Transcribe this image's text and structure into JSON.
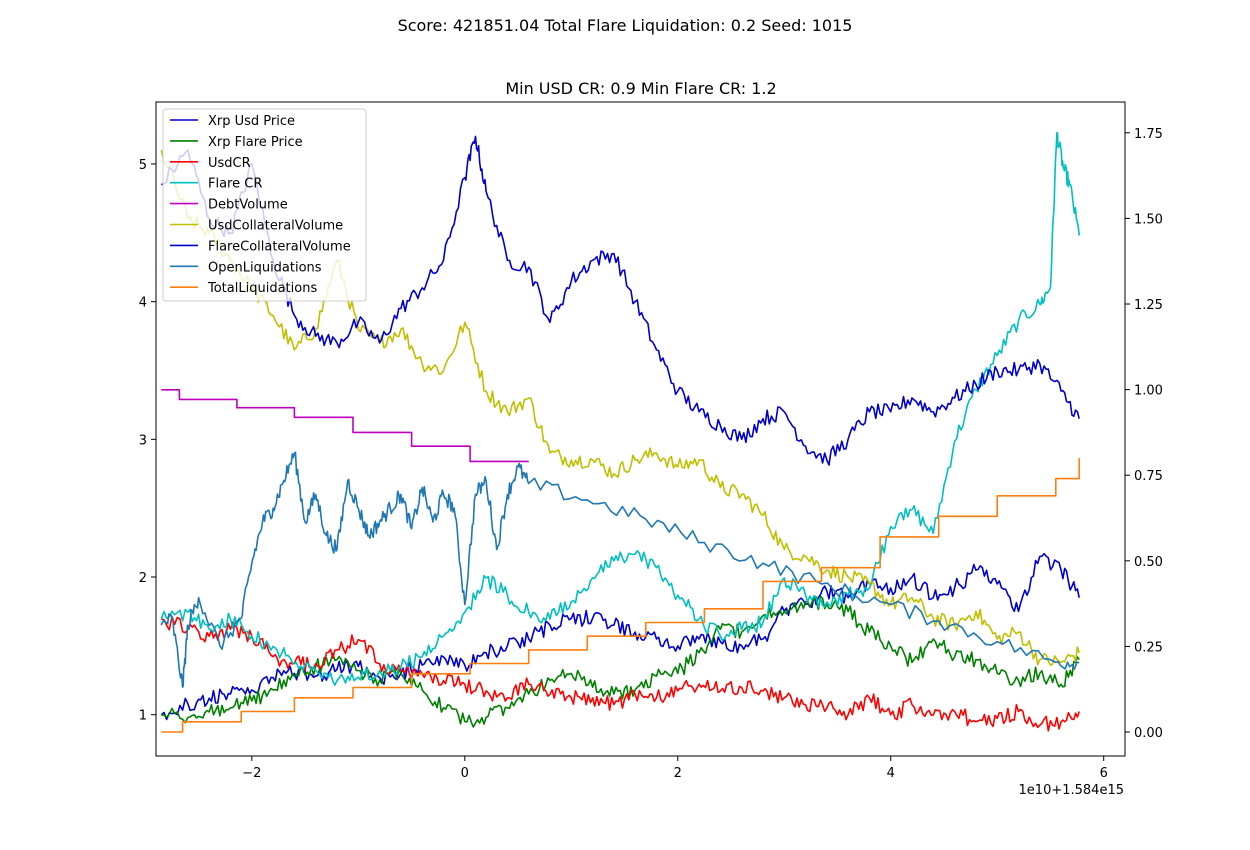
{
  "figure": {
    "suptitle": "Score: 421851.04 Total Flare Liquidation: 0.2 Seed: 1015",
    "title": "Min USD CR: 0.9 Min Flare CR: 1.2",
    "x_offset_label": "1e10+1.584e15"
  },
  "chart_data": {
    "type": "line",
    "title": "Min USD CR: 0.9 Min Flare CR: 1.2",
    "xlim": [
      -2.9,
      6.2
    ],
    "ylim_left": [
      0.7,
      5.45
    ],
    "ylim_right": [
      -0.07,
      1.84
    ],
    "x_ticks": [
      -2,
      0,
      2,
      4,
      6
    ],
    "x_tick_labels": [
      "−2",
      "0",
      "2",
      "4",
      "6"
    ],
    "y_ticks_left": [
      1,
      2,
      3,
      4,
      5
    ],
    "y_tick_labels_left": [
      "1",
      "2",
      "3",
      "4",
      "5"
    ],
    "y_ticks_right": [
      0.0,
      0.25,
      0.5,
      0.75,
      1.0,
      1.25,
      1.5,
      1.75
    ],
    "y_tick_labels_right": [
      "0.00",
      "0.25",
      "0.50",
      "0.75",
      "1.00",
      "1.25",
      "1.50",
      "1.75"
    ],
    "legend_position": "upper-left",
    "series": [
      {
        "name": "Xrp Usd Price",
        "color": "#0000cc",
        "axis": "left",
        "x": [
          -2.85,
          -2.6,
          -2.4,
          -2.2,
          -2.0,
          -1.8,
          -1.6,
          -1.4,
          -1.2,
          -1.0,
          -0.8,
          -0.6,
          -0.4,
          -0.2,
          0.0,
          0.2,
          0.4,
          0.6,
          0.8,
          1.0,
          1.2,
          1.4,
          1.6,
          1.8,
          2.0,
          2.2,
          2.4,
          2.6,
          2.8,
          3.0,
          3.2,
          3.4,
          3.6,
          3.8,
          4.0,
          4.2,
          4.4,
          4.6,
          4.8,
          5.0,
          5.2,
          5.4,
          5.6,
          5.77
        ],
        "y": [
          1.0,
          1.08,
          1.12,
          1.15,
          1.18,
          1.27,
          1.3,
          1.28,
          1.33,
          1.35,
          1.27,
          1.3,
          1.36,
          1.42,
          1.36,
          1.45,
          1.5,
          1.55,
          1.65,
          1.7,
          1.7,
          1.65,
          1.6,
          1.55,
          1.5,
          1.55,
          1.53,
          1.5,
          1.55,
          1.75,
          1.8,
          1.9,
          1.85,
          1.95,
          1.92,
          2.0,
          1.85,
          1.92,
          2.05,
          1.95,
          1.75,
          2.15,
          2.05,
          1.85
        ]
      },
      {
        "name": "Xrp Flare Price",
        "color": "#008000",
        "axis": "left",
        "x": [
          -2.85,
          -2.6,
          -2.4,
          -2.2,
          -2.0,
          -1.8,
          -1.6,
          -1.4,
          -1.2,
          -1.0,
          -0.8,
          -0.6,
          -0.4,
          -0.2,
          0.0,
          0.2,
          0.4,
          0.6,
          0.8,
          1.0,
          1.2,
          1.4,
          1.6,
          1.8,
          2.0,
          2.2,
          2.4,
          2.6,
          2.8,
          3.0,
          3.2,
          3.4,
          3.6,
          3.8,
          4.0,
          4.2,
          4.4,
          4.6,
          4.8,
          5.0,
          5.2,
          5.4,
          5.6,
          5.77
        ],
        "y": [
          1.0,
          0.98,
          1.02,
          1.05,
          1.1,
          1.18,
          1.28,
          1.35,
          1.4,
          1.32,
          1.25,
          1.3,
          1.18,
          1.05,
          0.95,
          0.98,
          1.05,
          1.15,
          1.25,
          1.3,
          1.2,
          1.15,
          1.18,
          1.28,
          1.3,
          1.45,
          1.62,
          1.6,
          1.72,
          1.75,
          1.82,
          1.8,
          1.75,
          1.6,
          1.5,
          1.38,
          1.55,
          1.42,
          1.4,
          1.3,
          1.25,
          1.3,
          1.22,
          1.4
        ]
      },
      {
        "name": "UsdCR",
        "color": "#ff0000",
        "axis": "right",
        "x": [
          -2.85,
          -2.6,
          -2.4,
          -2.2,
          -2.0,
          -1.8,
          -1.6,
          -1.4,
          -1.2,
          -1.0,
          -0.8,
          -0.6,
          -0.4,
          -0.2,
          0.0,
          0.2,
          0.4,
          0.6,
          0.8,
          1.0,
          1.2,
          1.4,
          1.6,
          1.8,
          2.0,
          2.2,
          2.4,
          2.6,
          2.8,
          3.0,
          3.2,
          3.4,
          3.6,
          3.8,
          4.0,
          4.2,
          4.4,
          4.6,
          4.8,
          5.0,
          5.2,
          5.4,
          5.6,
          5.77
        ],
        "y": [
          0.33,
          0.3,
          0.28,
          0.3,
          0.28,
          0.22,
          0.2,
          0.2,
          0.24,
          0.27,
          0.2,
          0.18,
          0.17,
          0.15,
          0.14,
          0.12,
          0.1,
          0.14,
          0.11,
          0.1,
          0.1,
          0.08,
          0.11,
          0.1,
          0.12,
          0.14,
          0.12,
          0.13,
          0.12,
          0.1,
          0.08,
          0.07,
          0.05,
          0.1,
          0.05,
          0.08,
          0.05,
          0.06,
          0.03,
          0.04,
          0.06,
          0.02,
          0.03,
          0.06
        ]
      },
      {
        "name": "Flare CR",
        "color": "#00bfbf",
        "axis": "right",
        "x": [
          -2.85,
          -2.6,
          -2.4,
          -2.2,
          -2.0,
          -1.8,
          -1.6,
          -1.4,
          -1.2,
          -1.0,
          -0.8,
          -0.6,
          -0.4,
          -0.2,
          0.0,
          0.2,
          0.4,
          0.6,
          0.8,
          1.0,
          1.2,
          1.4,
          1.6,
          1.8,
          2.0,
          2.2,
          2.4,
          2.6,
          2.8,
          3.0,
          3.2,
          3.4,
          3.6,
          3.8,
          4.0,
          4.2,
          4.4,
          4.6,
          4.8,
          5.0,
          5.2,
          5.4,
          5.5,
          5.56,
          5.62,
          5.68,
          5.77
        ],
        "y": [
          0.33,
          0.35,
          0.3,
          0.33,
          0.28,
          0.25,
          0.2,
          0.18,
          0.15,
          0.16,
          0.18,
          0.19,
          0.22,
          0.28,
          0.35,
          0.45,
          0.4,
          0.35,
          0.33,
          0.38,
          0.45,
          0.5,
          0.52,
          0.48,
          0.4,
          0.33,
          0.28,
          0.3,
          0.32,
          0.45,
          0.4,
          0.38,
          0.4,
          0.42,
          0.6,
          0.65,
          0.58,
          0.85,
          1.0,
          1.1,
          1.2,
          1.25,
          1.3,
          1.75,
          1.65,
          1.6,
          1.45
        ]
      },
      {
        "name": "DebtVolume",
        "color": "#bf00bf",
        "axis": "left",
        "step": true,
        "x": [
          -2.85,
          -2.68,
          -2.14,
          -1.6,
          -1.05,
          -0.5,
          0.05,
          0.6
        ],
        "y": [
          3.36,
          3.29,
          3.23,
          3.16,
          3.05,
          2.95,
          2.84,
          2.84
        ]
      },
      {
        "name": "UsdCollateralVolume",
        "color": "#bfbf00",
        "axis": "left",
        "x": [
          -2.85,
          -2.6,
          -2.4,
          -2.2,
          -2.0,
          -1.8,
          -1.6,
          -1.4,
          -1.2,
          -1.0,
          -0.8,
          -0.6,
          -0.4,
          -0.2,
          0.0,
          0.2,
          0.4,
          0.6,
          0.8,
          1.0,
          1.2,
          1.4,
          1.6,
          1.8,
          2.0,
          2.2,
          2.4,
          2.6,
          2.8,
          3.0,
          3.2,
          3.4,
          3.6,
          3.8,
          4.0,
          4.2,
          4.4,
          4.6,
          4.8,
          5.0,
          5.2,
          5.4,
          5.6,
          5.77
        ],
        "y": [
          5.1,
          4.6,
          4.5,
          4.3,
          4.1,
          3.9,
          3.65,
          3.8,
          4.3,
          3.8,
          3.7,
          3.8,
          3.55,
          3.5,
          3.85,
          3.35,
          3.2,
          3.3,
          2.9,
          2.85,
          2.85,
          2.75,
          2.85,
          2.9,
          2.8,
          2.85,
          2.65,
          2.6,
          2.45,
          2.2,
          2.15,
          2.05,
          2.0,
          1.95,
          1.8,
          1.85,
          1.7,
          1.65,
          1.75,
          1.55,
          1.6,
          1.4,
          1.38,
          1.45
        ]
      },
      {
        "name": "FlareCollateralVolume",
        "color": "#0000cc",
        "axis": "left",
        "x": [
          -2.85,
          -2.6,
          -2.4,
          -2.2,
          -2.0,
          -1.8,
          -1.6,
          -1.4,
          -1.2,
          -1.0,
          -0.8,
          -0.6,
          -0.4,
          -0.2,
          0.0,
          0.1,
          0.2,
          0.4,
          0.6,
          0.8,
          1.0,
          1.2,
          1.4,
          1.6,
          1.8,
          2.0,
          2.2,
          2.4,
          2.6,
          2.8,
          3.0,
          3.2,
          3.4,
          3.6,
          3.8,
          4.0,
          4.2,
          4.4,
          4.6,
          4.8,
          5.0,
          5.2,
          5.4,
          5.6,
          5.77
        ],
        "y": [
          4.85,
          5.1,
          4.6,
          4.5,
          5.0,
          4.3,
          3.9,
          3.75,
          3.7,
          3.85,
          3.7,
          3.95,
          4.1,
          4.3,
          4.9,
          5.2,
          4.8,
          4.3,
          4.25,
          3.85,
          4.15,
          4.3,
          4.35,
          4.0,
          3.65,
          3.35,
          3.2,
          3.1,
          3.0,
          3.15,
          3.2,
          2.95,
          2.85,
          3.0,
          3.2,
          3.2,
          3.3,
          3.2,
          3.3,
          3.4,
          3.5,
          3.5,
          3.55,
          3.35,
          3.15
        ]
      },
      {
        "name": "OpenLiquidations",
        "color": "#1f77b4",
        "axis": "left",
        "x": [
          -2.85,
          -2.75,
          -2.65,
          -2.6,
          -2.5,
          -2.3,
          -2.1,
          -2.0,
          -1.9,
          -1.8,
          -1.7,
          -1.6,
          -1.5,
          -1.4,
          -1.3,
          -1.2,
          -1.1,
          -1.0,
          -0.9,
          -0.8,
          -0.7,
          -0.6,
          -0.5,
          -0.4,
          -0.3,
          -0.2,
          -0.1,
          0.0,
          0.1,
          0.2,
          0.3,
          0.4,
          0.5,
          0.6,
          1.15,
          1.7,
          2.25,
          2.8,
          3.35,
          3.9,
          4.45,
          5.0,
          5.55,
          5.77
        ],
        "y": [
          1.65,
          1.7,
          1.2,
          1.65,
          1.85,
          1.5,
          1.7,
          2.1,
          2.4,
          2.5,
          2.7,
          2.9,
          2.4,
          2.6,
          2.3,
          2.2,
          2.7,
          2.5,
          2.3,
          2.4,
          2.5,
          2.6,
          2.35,
          2.65,
          2.4,
          2.6,
          2.5,
          1.8,
          2.6,
          2.7,
          2.2,
          2.6,
          2.8,
          2.68,
          2.56,
          2.42,
          2.25,
          2.1,
          1.95,
          1.82,
          1.68,
          1.53,
          1.38,
          1.38
        ]
      },
      {
        "name": "TotalLiquidations",
        "color": "#ff7f0e",
        "axis": "right",
        "step": true,
        "x": [
          -2.85,
          -2.65,
          -2.1,
          -1.6,
          -1.05,
          -0.5,
          0.05,
          0.6,
          1.15,
          1.7,
          2.25,
          2.8,
          3.35,
          3.9,
          4.45,
          5.0,
          5.55,
          5.77
        ],
        "y": [
          0.0,
          0.03,
          0.06,
          0.1,
          0.13,
          0.17,
          0.2,
          0.24,
          0.28,
          0.32,
          0.36,
          0.44,
          0.48,
          0.57,
          0.63,
          0.69,
          0.74,
          0.8
        ]
      }
    ]
  }
}
